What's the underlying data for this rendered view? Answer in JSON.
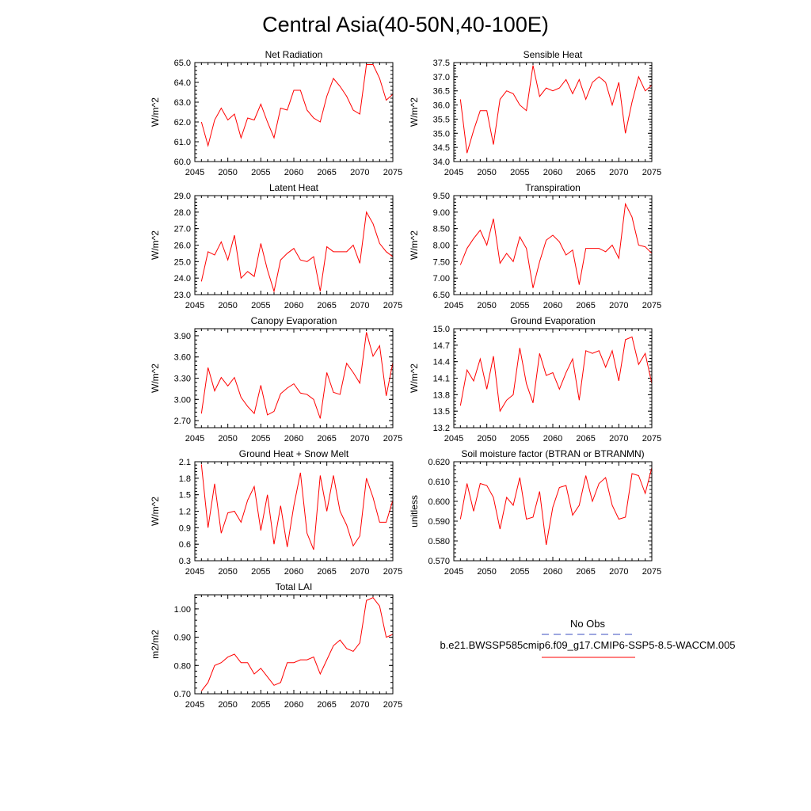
{
  "page_title": "Central Asia(40-50N,40-100E)",
  "colors": {
    "line": "#ff0000",
    "obs_line": "#3b4cc0",
    "axes": "#000000",
    "background": "#ffffff"
  },
  "legend": {
    "obs_label": "No Obs",
    "model_label": "b.e21.BWSSP585cmip6.f09_g17.CMIP6-SSP5-8.5-WACCM.005"
  },
  "chart_data": [
    {
      "type": "line",
      "title": "Net Radiation",
      "ylabel": "W/m^2",
      "xlim": [
        2045,
        2075
      ],
      "ylim": [
        60.0,
        65.0
      ],
      "xticks": [
        2045,
        2050,
        2055,
        2060,
        2065,
        2070,
        2075
      ],
      "yticks": [
        60.0,
        61.0,
        62.0,
        63.0,
        64.0,
        65.0
      ],
      "ytick_decimals": 1,
      "x": [
        2046,
        2047,
        2048,
        2049,
        2050,
        2051,
        2052,
        2053,
        2054,
        2055,
        2056,
        2057,
        2058,
        2059,
        2060,
        2061,
        2062,
        2063,
        2064,
        2065,
        2066,
        2067,
        2068,
        2069,
        2070,
        2071,
        2072,
        2073,
        2074,
        2075
      ],
      "values": [
        62.0,
        60.8,
        62.1,
        62.7,
        62.1,
        62.4,
        61.2,
        62.2,
        62.1,
        62.9,
        62.0,
        61.2,
        62.7,
        62.6,
        63.6,
        63.6,
        62.6,
        62.2,
        62.0,
        63.3,
        64.2,
        63.8,
        63.3,
        62.6,
        62.4,
        64.9,
        64.9,
        64.2,
        63.1,
        63.4
      ]
    },
    {
      "type": "line",
      "title": "Sensible Heat",
      "ylabel": "W/m^2",
      "xlim": [
        2045,
        2075
      ],
      "ylim": [
        34.0,
        37.5
      ],
      "xticks": [
        2045,
        2050,
        2055,
        2060,
        2065,
        2070,
        2075
      ],
      "yticks": [
        34.0,
        34.5,
        35.0,
        35.5,
        36.0,
        36.5,
        37.0,
        37.5
      ],
      "ytick_decimals": 1,
      "x": [
        2046,
        2047,
        2048,
        2049,
        2050,
        2051,
        2052,
        2053,
        2054,
        2055,
        2056,
        2057,
        2058,
        2059,
        2060,
        2061,
        2062,
        2063,
        2064,
        2065,
        2066,
        2067,
        2068,
        2069,
        2070,
        2071,
        2072,
        2073,
        2074,
        2075
      ],
      "values": [
        36.2,
        34.3,
        35.1,
        35.8,
        35.8,
        34.6,
        36.2,
        36.5,
        36.4,
        36.0,
        35.8,
        37.4,
        36.3,
        36.6,
        36.5,
        36.6,
        36.9,
        36.4,
        36.9,
        36.2,
        36.8,
        37.0,
        36.8,
        36.0,
        36.8,
        35.0,
        36.1,
        37.0,
        36.5,
        36.7
      ]
    },
    {
      "type": "line",
      "title": "Latent Heat",
      "ylabel": "W/m^2",
      "xlim": [
        2045,
        2075
      ],
      "ylim": [
        23.0,
        29.0
      ],
      "xticks": [
        2045,
        2050,
        2055,
        2060,
        2065,
        2070,
        2075
      ],
      "yticks": [
        23.0,
        24.0,
        25.0,
        26.0,
        27.0,
        28.0,
        29.0
      ],
      "ytick_decimals": 1,
      "x": [
        2046,
        2047,
        2048,
        2049,
        2050,
        2051,
        2052,
        2053,
        2054,
        2055,
        2056,
        2057,
        2058,
        2059,
        2060,
        2061,
        2062,
        2063,
        2064,
        2065,
        2066,
        2067,
        2068,
        2069,
        2070,
        2071,
        2072,
        2073,
        2074,
        2075
      ],
      "values": [
        23.8,
        25.6,
        25.4,
        26.2,
        25.1,
        26.6,
        24.0,
        24.4,
        24.1,
        26.1,
        24.5,
        23.2,
        25.1,
        25.5,
        25.8,
        25.1,
        25.0,
        25.3,
        23.2,
        25.9,
        25.6,
        25.6,
        25.6,
        26.0,
        24.9,
        28.0,
        27.3,
        26.1,
        25.6,
        25.3
      ]
    },
    {
      "type": "line",
      "title": "Transpiration",
      "ylabel": "W/m^2",
      "xlim": [
        2045,
        2075
      ],
      "ylim": [
        6.5,
        9.5
      ],
      "xticks": [
        2045,
        2050,
        2055,
        2060,
        2065,
        2070,
        2075
      ],
      "yticks": [
        6.5,
        7.0,
        7.5,
        8.0,
        8.5,
        9.0,
        9.5
      ],
      "ytick_decimals": 2,
      "x": [
        2046,
        2047,
        2048,
        2049,
        2050,
        2051,
        2052,
        2053,
        2054,
        2055,
        2056,
        2057,
        2058,
        2059,
        2060,
        2061,
        2062,
        2063,
        2064,
        2065,
        2066,
        2067,
        2068,
        2069,
        2070,
        2071,
        2072,
        2073,
        2074,
        2075
      ],
      "values": [
        7.4,
        7.9,
        8.2,
        8.45,
        8.0,
        8.8,
        7.45,
        7.75,
        7.5,
        8.25,
        7.9,
        6.7,
        7.5,
        8.15,
        8.3,
        8.1,
        7.7,
        7.85,
        6.8,
        7.9,
        7.9,
        7.9,
        7.8,
        8.0,
        7.6,
        9.25,
        8.85,
        8.0,
        7.95,
        7.75
      ]
    },
    {
      "type": "line",
      "title": "Canopy Evaporation",
      "ylabel": "W/m^2",
      "xlim": [
        2045,
        2075
      ],
      "ylim": [
        2.6,
        4.0
      ],
      "xticks": [
        2045,
        2050,
        2055,
        2060,
        2065,
        2070,
        2075
      ],
      "yticks": [
        2.7,
        3.0,
        3.3,
        3.6,
        3.9
      ],
      "ytick_decimals": 2,
      "x": [
        2046,
        2047,
        2048,
        2049,
        2050,
        2051,
        2052,
        2053,
        2054,
        2055,
        2056,
        2057,
        2058,
        2059,
        2060,
        2061,
        2062,
        2063,
        2064,
        2065,
        2066,
        2067,
        2068,
        2069,
        2070,
        2071,
        2072,
        2073,
        2074,
        2075
      ],
      "values": [
        2.8,
        3.45,
        3.12,
        3.31,
        3.19,
        3.31,
        3.03,
        2.9,
        2.8,
        3.2,
        2.78,
        2.83,
        3.08,
        3.16,
        3.22,
        3.09,
        3.07,
        3.0,
        2.73,
        3.38,
        3.1,
        3.07,
        3.51,
        3.38,
        3.23,
        3.95,
        3.61,
        3.76,
        3.05,
        3.52
      ]
    },
    {
      "type": "line",
      "title": "Ground Evaporation",
      "ylabel": "W/m^2",
      "xlim": [
        2045,
        2075
      ],
      "ylim": [
        13.2,
        15.0
      ],
      "xticks": [
        2045,
        2050,
        2055,
        2060,
        2065,
        2070,
        2075
      ],
      "yticks": [
        13.2,
        13.5,
        13.8,
        14.1,
        14.4,
        14.7,
        15.0
      ],
      "ytick_decimals": 1,
      "x": [
        2046,
        2047,
        2048,
        2049,
        2050,
        2051,
        2052,
        2053,
        2054,
        2055,
        2056,
        2057,
        2058,
        2059,
        2060,
        2061,
        2062,
        2063,
        2064,
        2065,
        2066,
        2067,
        2068,
        2069,
        2070,
        2071,
        2072,
        2073,
        2074,
        2075
      ],
      "values": [
        13.6,
        14.25,
        14.05,
        14.45,
        13.9,
        14.5,
        13.5,
        13.7,
        13.8,
        14.65,
        14.0,
        13.65,
        14.55,
        14.15,
        14.2,
        13.9,
        14.2,
        14.45,
        13.7,
        14.6,
        14.55,
        14.6,
        14.3,
        14.6,
        14.05,
        14.8,
        14.85,
        14.35,
        14.55,
        14.0
      ]
    },
    {
      "type": "line",
      "title": "Ground Heat + Snow Melt",
      "ylabel": "W/m^2",
      "xlim": [
        2045,
        2075
      ],
      "ylim": [
        0.3,
        2.1
      ],
      "xticks": [
        2045,
        2050,
        2055,
        2060,
        2065,
        2070,
        2075
      ],
      "yticks": [
        0.3,
        0.6,
        0.9,
        1.2,
        1.5,
        1.8,
        2.1
      ],
      "ytick_decimals": 1,
      "x": [
        2046,
        2047,
        2048,
        2049,
        2050,
        2051,
        2052,
        2053,
        2054,
        2055,
        2056,
        2057,
        2058,
        2059,
        2060,
        2061,
        2062,
        2063,
        2064,
        2065,
        2066,
        2067,
        2068,
        2069,
        2070,
        2071,
        2072,
        2073,
        2074,
        2075
      ],
      "values": [
        2.05,
        0.9,
        1.7,
        0.8,
        1.17,
        1.2,
        1.0,
        1.4,
        1.65,
        0.85,
        1.5,
        0.6,
        1.3,
        0.55,
        1.3,
        1.9,
        0.8,
        0.5,
        1.85,
        1.2,
        1.85,
        1.2,
        0.95,
        0.57,
        0.75,
        1.8,
        1.45,
        1.0,
        1.0,
        1.4
      ]
    },
    {
      "type": "line",
      "title": "Soil moisture factor (BTRAN or BTRANMN)",
      "ylabel": "unitless",
      "xlim": [
        2045,
        2075
      ],
      "ylim": [
        0.57,
        0.62
      ],
      "xticks": [
        2045,
        2050,
        2055,
        2060,
        2065,
        2070,
        2075
      ],
      "yticks": [
        0.57,
        0.58,
        0.59,
        0.6,
        0.61,
        0.62
      ],
      "ytick_decimals": 3,
      "x": [
        2046,
        2047,
        2048,
        2049,
        2050,
        2051,
        2052,
        2053,
        2054,
        2055,
        2056,
        2057,
        2058,
        2059,
        2060,
        2061,
        2062,
        2063,
        2064,
        2065,
        2066,
        2067,
        2068,
        2069,
        2070,
        2071,
        2072,
        2073,
        2074,
        2075
      ],
      "values": [
        0.591,
        0.609,
        0.595,
        0.609,
        0.608,
        0.602,
        0.586,
        0.602,
        0.598,
        0.612,
        0.591,
        0.592,
        0.605,
        0.578,
        0.597,
        0.607,
        0.608,
        0.593,
        0.598,
        0.613,
        0.6,
        0.609,
        0.612,
        0.598,
        0.591,
        0.592,
        0.614,
        0.613,
        0.604,
        0.617
      ]
    },
    {
      "type": "line",
      "title": "Total LAI",
      "ylabel": "m2/m2",
      "xlim": [
        2045,
        2075
      ],
      "ylim": [
        0.7,
        1.05
      ],
      "xticks": [
        2045,
        2050,
        2055,
        2060,
        2065,
        2070,
        2075
      ],
      "yticks": [
        0.7,
        0.8,
        0.9,
        1.0
      ],
      "ytick_decimals": 2,
      "x": [
        2046,
        2047,
        2048,
        2049,
        2050,
        2051,
        2052,
        2053,
        2054,
        2055,
        2056,
        2057,
        2058,
        2059,
        2060,
        2061,
        2062,
        2063,
        2064,
        2065,
        2066,
        2067,
        2068,
        2069,
        2070,
        2071,
        2072,
        2073,
        2074,
        2075
      ],
      "values": [
        0.71,
        0.74,
        0.8,
        0.81,
        0.83,
        0.84,
        0.81,
        0.81,
        0.77,
        0.79,
        0.76,
        0.73,
        0.74,
        0.81,
        0.81,
        0.82,
        0.82,
        0.83,
        0.77,
        0.82,
        0.87,
        0.89,
        0.86,
        0.85,
        0.88,
        1.03,
        1.04,
        1.01,
        0.9,
        0.91
      ]
    }
  ]
}
